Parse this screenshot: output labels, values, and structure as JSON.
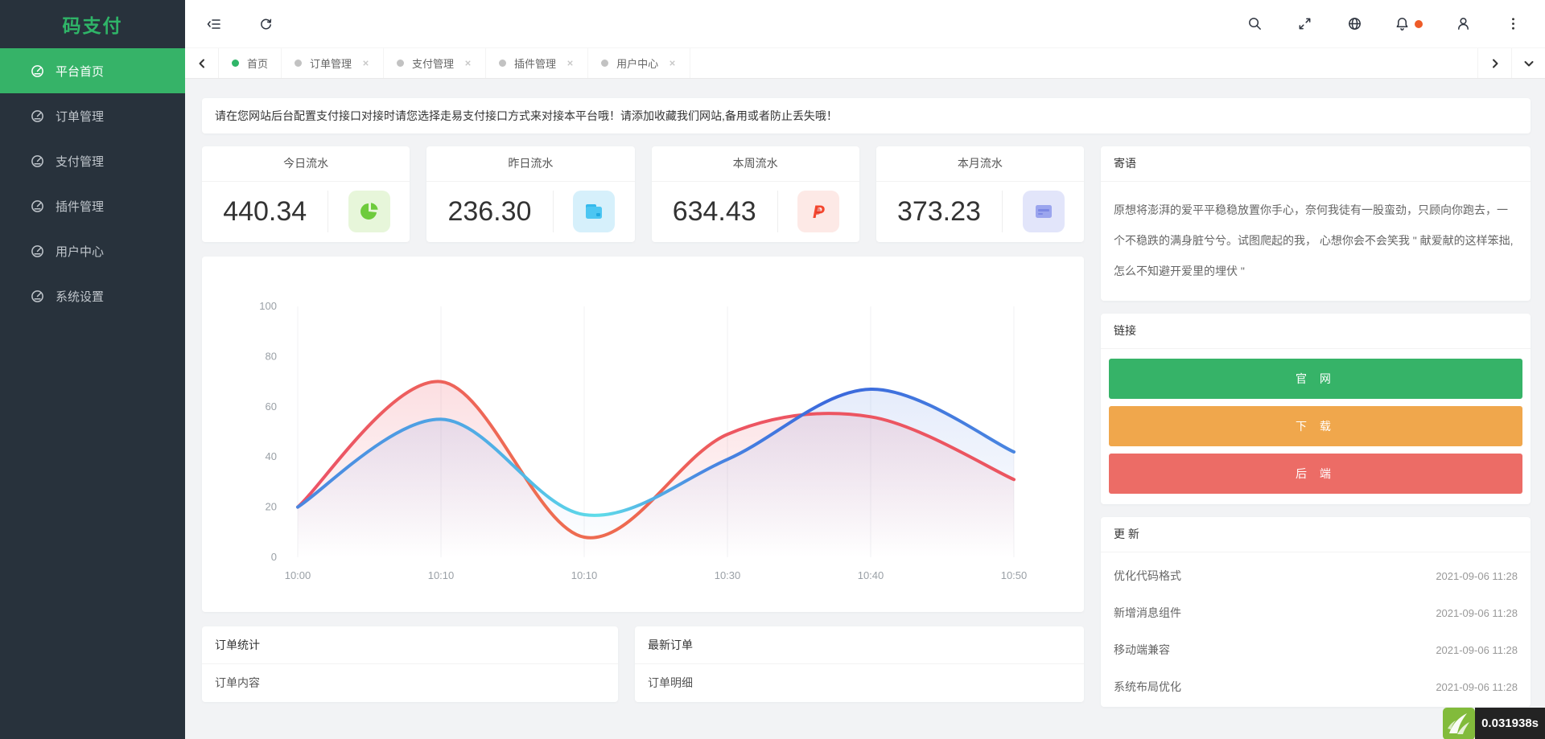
{
  "app": {
    "logo": "码支付"
  },
  "sidebar": {
    "items": [
      {
        "label": "平台首页",
        "active": true,
        "icon": "gauge-icon"
      },
      {
        "label": "订单管理",
        "active": false,
        "icon": "gauge-icon"
      },
      {
        "label": "支付管理",
        "active": false,
        "icon": "gauge-icon"
      },
      {
        "label": "插件管理",
        "active": false,
        "icon": "gauge-icon"
      },
      {
        "label": "用户中心",
        "active": false,
        "icon": "gauge-icon"
      },
      {
        "label": "系统设置",
        "active": false,
        "icon": "gauge-icon"
      }
    ]
  },
  "header": {
    "left_icons": [
      "collapse-menu-icon",
      "refresh-icon"
    ],
    "right_icons": [
      "search-icon",
      "fullscreen-icon",
      "globe-icon",
      "bell-icon",
      "user-icon",
      "more-vertical-icon"
    ],
    "bell_badge_color": "#ee5b28"
  },
  "tabs": {
    "items": [
      {
        "label": "首页",
        "active": true,
        "closable": false
      },
      {
        "label": "订单管理",
        "active": false,
        "closable": true
      },
      {
        "label": "支付管理",
        "active": false,
        "closable": true
      },
      {
        "label": "插件管理",
        "active": false,
        "closable": true
      },
      {
        "label": "用户中心",
        "active": false,
        "closable": true
      }
    ]
  },
  "notice": {
    "text": "请在您网站后台配置支付接口对接时请您选择走易支付接口方式来对接本平台哦！请添加收藏我们网站,备用或者防止丢失哦！"
  },
  "stats": {
    "cards": [
      {
        "title": "今日流水",
        "value": "440.34",
        "icon": "pie-chart-icon",
        "color": "#6ecb3c",
        "bg": "#e7f6da"
      },
      {
        "title": "昨日流水",
        "value": "236.30",
        "icon": "wallet-icon",
        "color": "#4cc6f2",
        "bg": "#d6f0fb"
      },
      {
        "title": "本周流水",
        "value": "634.43",
        "icon": "paypal-icon",
        "color": "#f4472f",
        "bg": "#fde9e6"
      },
      {
        "title": "本月流水",
        "value": "373.23",
        "icon": "credit-card-icon",
        "color": "#8d97e8",
        "bg": "#e2e5fa"
      }
    ]
  },
  "chart_data": {
    "type": "line",
    "title": "",
    "x": [
      "10:00",
      "10:10",
      "10:10",
      "10:30",
      "10:40",
      "10:50"
    ],
    "series": [
      {
        "name": "series-red",
        "color": "#ec5564",
        "values": [
          20,
          70,
          8,
          49,
          56,
          31
        ]
      },
      {
        "name": "series-blue",
        "color": "#4a7de0",
        "values": [
          20,
          55,
          17,
          39,
          67,
          42
        ]
      }
    ],
    "ylim": [
      0,
      100
    ],
    "yticks": [
      0,
      20,
      40,
      60,
      80,
      100
    ],
    "grid": "vertical-only",
    "smooth": true,
    "area": true,
    "legend": "none"
  },
  "panels": {
    "motto": {
      "title": "寄语",
      "text": "原想将澎湃的爱平平稳稳放置你手心，奈何我徒有一股蛮劲，只顾向你跑去，一个不稳跌的满身脏兮兮。试图爬起的我， 心想你会不会笑我 \" 献爱献的这样笨拙, 怎么不知避开爱里的埋伏 \""
    },
    "links": {
      "title": "链接",
      "buttons": [
        {
          "label": "官 网",
          "color": "#36b368"
        },
        {
          "label": "下 载",
          "color": "#f0a74c"
        },
        {
          "label": "后 端",
          "color": "#ec6c66"
        }
      ]
    },
    "updates": {
      "title": "更 新",
      "items": [
        {
          "label": "优化代码格式",
          "date": "2021-09-06 11:28"
        },
        {
          "label": "新增消息组件",
          "date": "2021-09-06 11:28"
        },
        {
          "label": "移动端兼容",
          "date": "2021-09-06 11:28"
        },
        {
          "label": "系统布局优化",
          "date": "2021-09-06 11:28"
        }
      ]
    }
  },
  "bottom_cards": [
    {
      "title": "订单统计",
      "content": "订单内容"
    },
    {
      "title": "最新订单",
      "content": "订单明细"
    }
  ],
  "trace": {
    "time": "0.031938s",
    "logo": "thinkphp-logo"
  }
}
